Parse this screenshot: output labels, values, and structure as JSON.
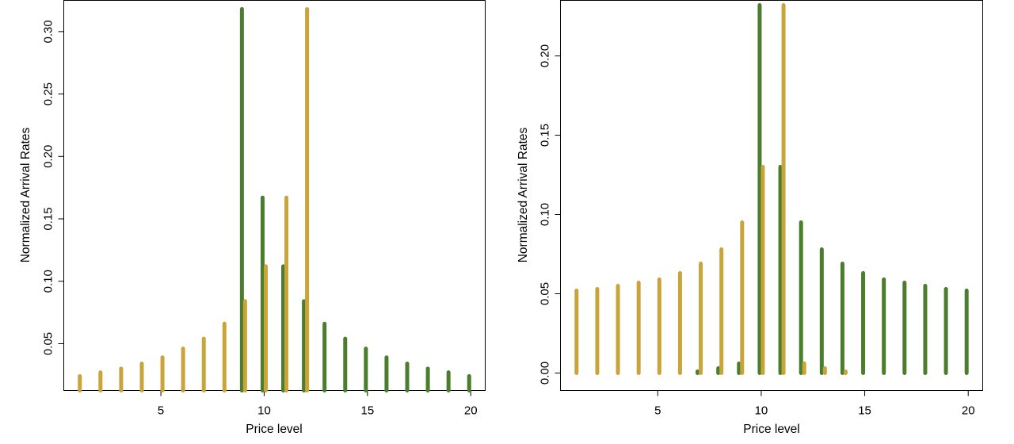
{
  "chart_data": [
    {
      "type": "bar",
      "xlabel": "Price level",
      "ylabel": "Normalized Arrival Rates",
      "xlim": [
        0.3,
        20.7
      ],
      "ylim": [
        0.0125,
        0.325
      ],
      "xticks": [
        5,
        10,
        15,
        20
      ],
      "yticks": [
        0.05,
        0.1,
        0.15,
        0.2,
        0.25,
        0.3
      ],
      "ytick_labels": [
        "0.05",
        "0.10",
        "0.15",
        "0.20",
        "0.25",
        "0.30"
      ],
      "series": [
        {
          "color": "#4a7d2c",
          "x": [
            9,
            10,
            11,
            12,
            13,
            14,
            15,
            16,
            17,
            18,
            19,
            20
          ],
          "values": [
            0.318,
            0.167,
            0.112,
            0.084,
            0.066,
            0.054,
            0.046,
            0.039,
            0.034,
            0.03,
            0.027,
            0.024
          ]
        },
        {
          "color": "#c9a43a",
          "x": [
            1,
            2,
            3,
            4,
            5,
            6,
            7,
            8,
            9,
            10,
            11,
            12
          ],
          "values": [
            0.024,
            0.027,
            0.03,
            0.034,
            0.039,
            0.046,
            0.054,
            0.066,
            0.084,
            0.112,
            0.167,
            0.318
          ]
        }
      ]
    },
    {
      "type": "bar",
      "xlabel": "Price level",
      "ylabel": "Normalized Arrival Rates",
      "xlim": [
        0.3,
        20.7
      ],
      "ylim": [
        -0.011,
        0.235
      ],
      "xticks": [
        5,
        10,
        15,
        20
      ],
      "yticks": [
        0.0,
        0.05,
        0.1,
        0.15,
        0.2
      ],
      "ytick_labels": [
        "0.00",
        "0.05",
        "0.10",
        "0.15",
        "0.20"
      ],
      "series": [
        {
          "color": "#4a7d2c",
          "x": [
            7,
            8,
            9,
            10,
            11,
            12,
            13,
            14,
            15,
            16,
            17,
            18,
            19,
            20
          ],
          "values": [
            0.001,
            0.003,
            0.006,
            0.232,
            0.13,
            0.095,
            0.078,
            0.069,
            0.063,
            0.059,
            0.057,
            0.055,
            0.053,
            0.052
          ]
        },
        {
          "color": "#c9a43a",
          "x": [
            1,
            2,
            3,
            4,
            5,
            6,
            7,
            8,
            9,
            10,
            11,
            12,
            13,
            14
          ],
          "values": [
            0.052,
            0.053,
            0.055,
            0.057,
            0.059,
            0.063,
            0.069,
            0.078,
            0.095,
            0.13,
            0.232,
            0.006,
            0.003,
            0.001
          ]
        }
      ]
    }
  ]
}
